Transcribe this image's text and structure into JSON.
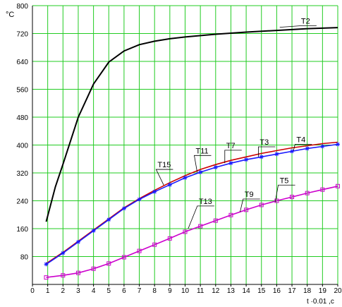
{
  "chart_data": {
    "type": "line",
    "ylabel": "°C",
    "xlabel": "t ·0.01 ,c",
    "xlim": [
      0,
      20
    ],
    "ylim": [
      0,
      800
    ],
    "grid": true,
    "x_ticks": [
      0,
      1,
      2,
      3,
      4,
      5,
      6,
      7,
      8,
      9,
      10,
      11,
      12,
      13,
      14,
      15,
      16,
      17,
      18,
      19,
      20
    ],
    "y_ticks": [
      80,
      160,
      240,
      320,
      400,
      480,
      560,
      640,
      720,
      800
    ],
    "series": [
      {
        "name": "T2",
        "color": "#000000",
        "marker": "none",
        "x": [
          0.9,
          1.5,
          2,
          3,
          4,
          5,
          6,
          7,
          8,
          9,
          10,
          12,
          14,
          16,
          18,
          20
        ],
        "y": [
          180,
          280,
          345,
          480,
          575,
          638,
          670,
          688,
          698,
          705,
          710,
          718,
          724,
          729,
          734,
          737
        ]
      },
      {
        "name": "T3",
        "color": "#cc0000",
        "marker": "none",
        "x": [
          0.9,
          2,
          3,
          4,
          5,
          6,
          7,
          8,
          9,
          10,
          11,
          12,
          13,
          14,
          15,
          16,
          17,
          18,
          19,
          20
        ],
        "y": [
          60,
          92,
          124,
          156,
          188,
          220,
          246,
          270,
          292,
          312,
          330,
          344,
          356,
          366,
          376,
          384,
          392,
          398,
          404,
          408
        ]
      },
      {
        "name": "T4",
        "color": "#1a1aff",
        "marker": "star",
        "x": [
          0.9,
          2,
          3,
          4,
          5,
          6,
          7,
          8,
          9,
          10,
          11,
          12,
          13,
          14,
          15,
          16,
          17,
          18,
          19,
          20
        ],
        "y": [
          58,
          90,
          122,
          154,
          186,
          218,
          244,
          266,
          286,
          306,
          322,
          336,
          348,
          358,
          366,
          374,
          382,
          390,
          396,
          402
        ]
      },
      {
        "name": "T5",
        "color": "#cc00cc",
        "marker": "square",
        "x": [
          0.9,
          2,
          3,
          4,
          5,
          6,
          7,
          8,
          9,
          10,
          11,
          12,
          13,
          14,
          15,
          16,
          17,
          18,
          19,
          20
        ],
        "y": [
          20,
          26,
          33,
          45,
          60,
          78,
          96,
          114,
          132,
          151,
          167,
          183,
          199,
          214,
          228,
          240,
          251,
          262,
          272,
          282
        ]
      }
    ],
    "annotations": [
      {
        "text": "T2",
        "x": 16.2,
        "y": 738,
        "tx": 17.5,
        "ty": 742
      },
      {
        "text": "T15",
        "x": 8.6,
        "y": 285,
        "tx": 8.1,
        "ty": 330
      },
      {
        "text": "T11",
        "x": 10.8,
        "y": 320,
        "tx": 10.6,
        "ty": 370
      },
      {
        "text": "T7",
        "x": 12.6,
        "y": 348,
        "tx": 12.6,
        "ty": 385
      },
      {
        "text": "T3",
        "x": 14.8,
        "y": 366,
        "tx": 14.8,
        "ty": 395
      },
      {
        "text": "T4",
        "x": 17.1,
        "y": 384,
        "tx": 17.2,
        "ty": 402
      },
      {
        "text": "T13",
        "x": 10.2,
        "y": 160,
        "tx": 10.8,
        "ty": 225
      },
      {
        "text": "T9",
        "x": 13.6,
        "y": 208,
        "tx": 13.8,
        "ty": 245
      },
      {
        "text": "T5",
        "x": 15.9,
        "y": 236,
        "tx": 16.1,
        "ty": 285
      }
    ]
  }
}
